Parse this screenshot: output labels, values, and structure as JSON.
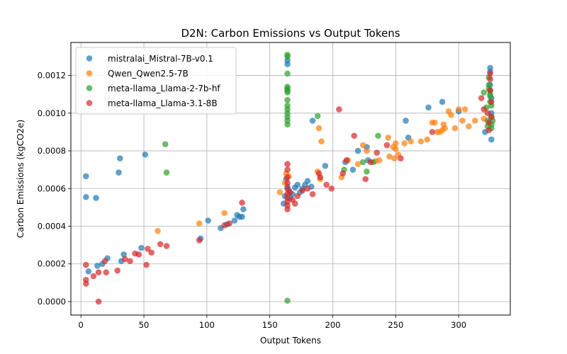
{
  "chart_data": {
    "type": "scatter",
    "title": "D2N: Carbon Emissions vs Output Tokens",
    "xlabel": "Output Tokens",
    "ylabel": "Carbon Emissions (kgCO2e)",
    "xlim": [
      -8,
      341
    ],
    "ylim": [
      -7.15e-05,
      0.001375
    ],
    "xticks": [
      0,
      50,
      100,
      150,
      200,
      250,
      300
    ],
    "yticks": [
      0.0,
      0.0002,
      0.0004,
      0.0006,
      0.0008,
      0.001,
      0.0012
    ],
    "ytick_labels": [
      "0.0000",
      "0.0002",
      "0.0004",
      "0.0006",
      "0.0008",
      "0.0010",
      "0.0012"
    ],
    "grid": true,
    "legend_position": "top-left",
    "series": [
      {
        "name": "mistralai_Mistral-7B-v0.1",
        "color": "#1f77b4",
        "points": [
          [
            4,
            0.000665
          ],
          [
            4,
            0.000555
          ],
          [
            6,
            0.00016
          ],
          [
            12,
            0.00055
          ],
          [
            13,
            0.00019
          ],
          [
            17,
            0.0002
          ],
          [
            21,
            0.00023
          ],
          [
            30,
            0.000685
          ],
          [
            31,
            0.00076
          ],
          [
            32,
            0.000215
          ],
          [
            34,
            0.00025
          ],
          [
            48,
            0.000285
          ],
          [
            51,
            0.00078
          ],
          [
            95,
            0.000335
          ],
          [
            101,
            0.00043
          ],
          [
            111,
            0.00039
          ],
          [
            116,
            0.00041
          ],
          [
            122,
            0.00043
          ],
          [
            124,
            0.00046
          ],
          [
            126,
            0.00045
          ],
          [
            128,
            0.00045
          ],
          [
            129,
            0.00049
          ],
          [
            161,
            0.00052
          ],
          [
            162,
            0.00056
          ],
          [
            163,
            0.00065
          ],
          [
            164,
            0.00061
          ],
          [
            165,
            0.00059
          ],
          [
            166,
            0.00055
          ],
          [
            168,
            0.00057
          ],
          [
            170,
            0.000605
          ],
          [
            172,
            0.00062
          ],
          [
            174,
            0.00058
          ],
          [
            176,
            0.0006
          ],
          [
            178,
            0.00062
          ],
          [
            180,
            0.00064
          ],
          [
            183,
            0.00061
          ],
          [
            164,
            0.00126
          ],
          [
            164,
            0.00128
          ],
          [
            184,
            0.00096
          ],
          [
            194,
            0.00072
          ],
          [
            210,
            0.00074
          ],
          [
            216,
            0.0007
          ],
          [
            220,
            0.0008
          ],
          [
            227,
            0.00082
          ],
          [
            228,
            0.00075
          ],
          [
            258,
            0.00096
          ],
          [
            260,
            0.00087
          ],
          [
            276,
            0.00103
          ],
          [
            287,
            0.00106
          ],
          [
            300,
            0.00101
          ],
          [
            321,
            0.0009
          ],
          [
            325,
            0.00124
          ],
          [
            326,
            0.00086
          ],
          [
            325,
            0.00122
          ],
          [
            325,
            0.00115
          ],
          [
            326,
            0.00108
          ],
          [
            326,
            0.001
          ]
        ]
      },
      {
        "name": "Qwen_Qwen2.5-7B",
        "color": "#ff7f0e",
        "points": [
          [
            61,
            0.000375
          ],
          [
            94,
            0.000415
          ],
          [
            114,
            0.00047
          ],
          [
            158,
            0.00058
          ],
          [
            162,
            0.00063
          ],
          [
            163,
            0.00068
          ],
          [
            165,
            0.000665
          ],
          [
            188,
            0.00069
          ],
          [
            189,
            0.00092
          ],
          [
            190,
            0.00065
          ],
          [
            191,
            0.00085
          ],
          [
            207,
            0.00066
          ],
          [
            212,
            0.00075
          ],
          [
            220,
            0.00073
          ],
          [
            224,
            0.00083
          ],
          [
            227,
            0.0008
          ],
          [
            234,
            0.000745
          ],
          [
            237,
            0.00075
          ],
          [
            244,
            0.00087
          ],
          [
            245,
            0.00077
          ],
          [
            248,
            0.00082
          ],
          [
            249,
            0.00076
          ],
          [
            250,
            0.00081
          ],
          [
            250,
            0.00084
          ],
          [
            252,
            0.00078
          ],
          [
            257,
            0.00084
          ],
          [
            262,
            0.00085
          ],
          [
            270,
            0.00085
          ],
          [
            275,
            0.00086
          ],
          [
            279,
            0.00095
          ],
          [
            281,
            0.00095
          ],
          [
            283,
            0.0009
          ],
          [
            285,
            0.0009
          ],
          [
            287,
            0.00091
          ],
          [
            288,
            0.00094
          ],
          [
            289,
            0.00092
          ],
          [
            292,
            0.00101
          ],
          [
            294,
            0.00099
          ],
          [
            297,
            0.00092
          ],
          [
            300,
            0.00102
          ],
          [
            303,
            0.00096
          ],
          [
            305,
            0.00102
          ],
          [
            308,
            0.00093
          ],
          [
            313,
            0.00096
          ],
          [
            320,
            0.00097
          ]
        ]
      },
      {
        "name": "meta-llama_Llama-2-7b-hf",
        "color": "#2ca02c",
        "points": [
          [
            67,
            0.000835
          ],
          [
            68,
            0.000685
          ],
          [
            164,
            0.00131
          ],
          [
            164,
            0.0013
          ],
          [
            164,
            0.00121
          ],
          [
            164,
            0.00114
          ],
          [
            164,
            0.00113
          ],
          [
            164,
            0.00112
          ],
          [
            164,
            0.00111
          ],
          [
            164,
            0.00107
          ],
          [
            164,
            0.00104
          ],
          [
            164,
            0.00102
          ],
          [
            164,
            0.001
          ],
          [
            164,
            0.00098
          ],
          [
            164,
            0.00096
          ],
          [
            164,
            0.00094
          ],
          [
            164,
            5e-06
          ],
          [
            188,
            0.000985
          ],
          [
            209,
            0.0007
          ],
          [
            224,
            0.00074
          ],
          [
            227,
            0.00069
          ],
          [
            232,
            0.00074
          ],
          [
            236,
            0.00088
          ],
          [
            320,
            0.00111
          ],
          [
            322,
            0.00103
          ],
          [
            323,
            0.00096
          ],
          [
            323,
            0.00093
          ],
          [
            324,
            0.00119
          ],
          [
            324,
            0.00115
          ],
          [
            324,
            0.00113
          ],
          [
            325,
            0.00112
          ],
          [
            325,
            0.0011
          ],
          [
            325,
            0.00109
          ],
          [
            325,
            0.00106
          ],
          [
            326,
            0.00104
          ],
          [
            326,
            0.00098
          ],
          [
            326,
            0.00094
          ],
          [
            326,
            0.00092
          ],
          [
            327,
            0.00096
          ]
        ]
      },
      {
        "name": "meta-llama_Llama-3.1-8B",
        "color": "#d62728",
        "points": [
          [
            4,
            0.000195
          ],
          [
            4,
            0.000115
          ],
          [
            4,
            9.5e-05
          ],
          [
            10,
            0.000135
          ],
          [
            14,
            0.000155
          ],
          [
            14,
            0.0
          ],
          [
            19,
            0.000215
          ],
          [
            20,
            0.000155
          ],
          [
            29,
            0.000165
          ],
          [
            35,
            0.000225
          ],
          [
            39,
            0.000215
          ],
          [
            43,
            0.000255
          ],
          [
            46,
            0.00025
          ],
          [
            52,
            0.000195
          ],
          [
            53,
            0.00028
          ],
          [
            56,
            0.00026
          ],
          [
            63,
            0.000305
          ],
          [
            68,
            0.000295
          ],
          [
            94,
            0.000325
          ],
          [
            114,
            0.000405
          ],
          [
            118,
            0.000415
          ],
          [
            128,
            0.000525
          ],
          [
            164,
            0.00073
          ],
          [
            164,
            0.0007
          ],
          [
            164,
            0.00066
          ],
          [
            164,
            0.00063
          ],
          [
            164,
            0.0006
          ],
          [
            164,
            0.00057
          ],
          [
            164,
            0.00055
          ],
          [
            164,
            0.00053
          ],
          [
            164,
            0.00051
          ],
          [
            164,
            0.00049
          ],
          [
            166,
            0.00058
          ],
          [
            168,
            0.00054
          ],
          [
            170,
            0.00052
          ],
          [
            172,
            0.00056
          ],
          [
            176,
            0.00059
          ],
          [
            180,
            0.0006
          ],
          [
            184,
            0.00057
          ],
          [
            189,
            0.00068
          ],
          [
            190,
            0.00066
          ],
          [
            195,
            0.00062
          ],
          [
            199,
            0.0006
          ],
          [
            205,
            0.00102
          ],
          [
            208,
            0.00068
          ],
          [
            211,
            0.00075
          ],
          [
            217,
            0.00088
          ],
          [
            226,
            0.00065
          ],
          [
            230,
            0.00074
          ],
          [
            235,
            0.00079
          ],
          [
            243,
            0.00083
          ],
          [
            254,
            0.00076
          ],
          [
            279,
            0.0009
          ],
          [
            318,
            0.00108
          ],
          [
            320,
            0.00102
          ],
          [
            323,
            0.001
          ],
          [
            324,
            0.00095
          ],
          [
            324,
            0.00091
          ],
          [
            325,
            0.00121
          ],
          [
            325,
            0.00118
          ],
          [
            325,
            0.00112
          ],
          [
            326,
            0.00106
          ],
          [
            326,
            0.00098
          ]
        ]
      }
    ]
  }
}
